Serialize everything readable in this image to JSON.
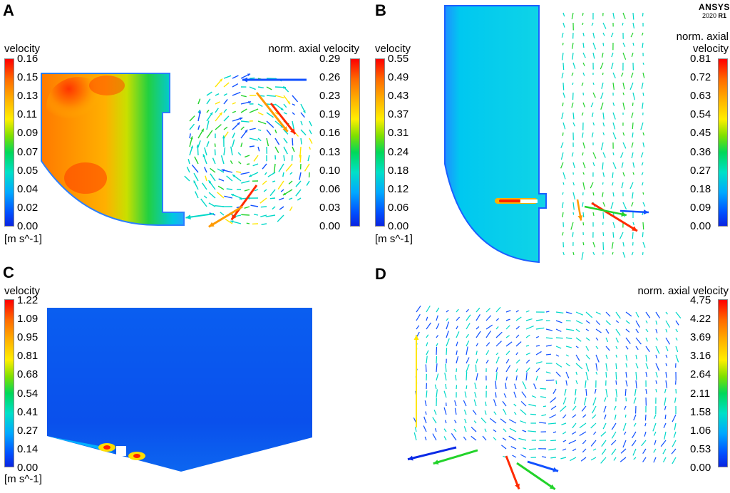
{
  "logo": {
    "brand": "ANSYS",
    "version_prefix": "2020 ",
    "version_release": "R1"
  },
  "panels": {
    "A": {
      "letter": "A",
      "left_bar": {
        "title": "velocity",
        "ticks": [
          "0.16",
          "0.15",
          "0.13",
          "0.11",
          "0.09",
          "0.07",
          "0.05",
          "0.04",
          "0.02",
          "0.00"
        ],
        "unit": "[m s^-1]"
      },
      "right_bar": {
        "title": "norm. axial velocity",
        "ticks": [
          "0.29",
          "0.26",
          "0.23",
          "0.19",
          "0.16",
          "0.13",
          "0.10",
          "0.06",
          "0.03",
          "0.00"
        ]
      }
    },
    "B": {
      "letter": "B",
      "left_bar": {
        "title": "velocity",
        "ticks": [
          "0.55",
          "0.49",
          "0.43",
          "0.37",
          "0.31",
          "0.24",
          "0.18",
          "0.12",
          "0.06",
          "0.00"
        ],
        "unit": "[m s^-1]"
      },
      "right_bar": {
        "title_line1": "norm. axial",
        "title_line2": "velocity",
        "ticks": [
          "0.81",
          "0.72",
          "0.63",
          "0.54",
          "0.45",
          "0.36",
          "0.27",
          "0.18",
          "0.09",
          "0.00"
        ]
      }
    },
    "C": {
      "letter": "C",
      "left_bar": {
        "title": "velocity",
        "ticks": [
          "1.22",
          "1.09",
          "0.95",
          "0.81",
          "0.68",
          "0.54",
          "0.41",
          "0.27",
          "0.14",
          "0.00"
        ],
        "unit": "[m s^-1]"
      }
    },
    "D": {
      "letter": "D",
      "right_bar": {
        "title": "norm. axial velocity",
        "ticks": [
          "4.75",
          "4.22",
          "3.69",
          "3.16",
          "2.64",
          "2.11",
          "1.58",
          "1.06",
          "0.53",
          "0.00"
        ]
      }
    }
  },
  "colors": {
    "red": "#ff2a00",
    "orange": "#ff9a00",
    "yellow": "#ffe600",
    "green": "#22d32a",
    "cyan": "#00d8c8",
    "blue": "#1050ff",
    "dark_blue": "#0a2ae6"
  }
}
